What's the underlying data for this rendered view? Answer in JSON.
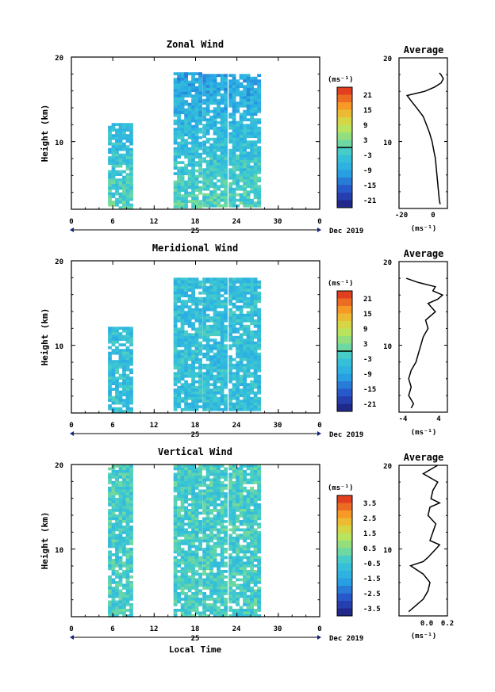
{
  "figure": {
    "x_axis_title": "Local Time",
    "date_label": "25",
    "month_label": "Dec 2019",
    "x_ticks": [
      "0",
      "6",
      "12",
      "18",
      "24",
      "30",
      "0"
    ]
  },
  "chart_data": [
    {
      "type": "heatmap",
      "title": "Zonal Wind",
      "ylabel": "Height (km)",
      "xlim": [
        0,
        36
      ],
      "ylim": [
        2,
        20
      ],
      "y_ticks": [
        "20",
        "10"
      ],
      "colorbar": {
        "unit": "(ms⁻¹)",
        "ticks": [
          "21",
          "15",
          "9",
          "3",
          "-3",
          "-9",
          "-15",
          "-21"
        ],
        "range": [
          -24,
          24
        ]
      },
      "data_blocks": [
        {
          "t": [
            5.3,
            8.7
          ],
          "h": [
            2.3,
            12.2
          ]
        },
        {
          "t": [
            14.8,
            18.6
          ],
          "h": [
            2.3,
            18.2
          ]
        },
        {
          "t": [
            19.0,
            22.2
          ],
          "h": [
            2.3,
            18.0
          ]
        },
        {
          "t": [
            22.8,
            27.0
          ],
          "h": [
            2.3,
            18.0
          ]
        }
      ],
      "average": {
        "title": "Average",
        "unit": "(ms⁻¹)",
        "xlim": [
          -24,
          6
        ],
        "x_ticks": [
          "-20",
          "0"
        ],
        "profile": [
          [
            2.5,
            1.5
          ],
          [
            3,
            1
          ],
          [
            4,
            0.5
          ],
          [
            5,
            0
          ],
          [
            6,
            -0.5
          ],
          [
            7,
            -1
          ],
          [
            8,
            -1.5
          ],
          [
            9,
            -2.5
          ],
          [
            10,
            -3.5
          ],
          [
            11,
            -5
          ],
          [
            12,
            -7
          ],
          [
            13,
            -9
          ],
          [
            14,
            -13
          ],
          [
            15,
            -17
          ],
          [
            15.5,
            -19
          ],
          [
            16,
            -8
          ],
          [
            16.5,
            -2
          ],
          [
            17,
            2
          ],
          [
            17.5,
            3.5
          ],
          [
            18,
            2
          ],
          [
            18.2,
            1
          ]
        ]
      }
    },
    {
      "type": "heatmap",
      "title": "Meridional Wind",
      "ylabel": "Height (km)",
      "xlim": [
        0,
        36
      ],
      "ylim": [
        2,
        20
      ],
      "y_ticks": [
        "20",
        "10"
      ],
      "colorbar": {
        "unit": "(ms⁻¹)",
        "ticks": [
          "21",
          "15",
          "9",
          "3",
          "-3",
          "-9",
          "-15",
          "-21"
        ],
        "range": [
          -24,
          24
        ]
      },
      "data_blocks": [
        {
          "t": [
            5.3,
            8.7
          ],
          "h": [
            2.3,
            12.2
          ]
        },
        {
          "t": [
            14.8,
            18.6
          ],
          "h": [
            2.3,
            18.0
          ]
        },
        {
          "t": [
            19.0,
            22.2
          ],
          "h": [
            2.3,
            18.0
          ]
        },
        {
          "t": [
            22.8,
            27.0
          ],
          "h": [
            2.3,
            18.0
          ]
        }
      ],
      "average": {
        "title": "Average",
        "unit": "(ms⁻¹)",
        "xlim": [
          -5,
          5
        ],
        "x_ticks": [
          "-4",
          "4"
        ],
        "profile": [
          [
            2.5,
            -2.5
          ],
          [
            3,
            -2
          ],
          [
            4,
            -3
          ],
          [
            5,
            -2.5
          ],
          [
            6,
            -3
          ],
          [
            7,
            -2.5
          ],
          [
            8,
            -1.5
          ],
          [
            9,
            -1
          ],
          [
            10,
            -0.5
          ],
          [
            11,
            0
          ],
          [
            12,
            1
          ],
          [
            13,
            0.5
          ],
          [
            14,
            2.5
          ],
          [
            15,
            1
          ],
          [
            15.5,
            3
          ],
          [
            16,
            4
          ],
          [
            16.5,
            2
          ],
          [
            17,
            2.5
          ],
          [
            17.5,
            -1
          ],
          [
            18,
            -3.5
          ]
        ]
      }
    },
    {
      "type": "heatmap",
      "title": "Vertical Wind",
      "ylabel": "Height (km)",
      "xlim": [
        0,
        36
      ],
      "ylim": [
        2,
        20
      ],
      "y_ticks": [
        "20",
        "10"
      ],
      "colorbar": {
        "unit": "(ms⁻¹)",
        "ticks": [
          "3.5",
          "2.5",
          "1.5",
          "0.5",
          "-0.5",
          "-1.5",
          "-2.5",
          "-3.5"
        ],
        "range": [
          -4,
          4
        ]
      },
      "data_blocks": [
        {
          "t": [
            5.3,
            8.7
          ],
          "h": [
            2.0,
            20.0
          ]
        },
        {
          "t": [
            14.8,
            18.6
          ],
          "h": [
            2.0,
            20.0
          ]
        },
        {
          "t": [
            19.0,
            22.2
          ],
          "h": [
            2.0,
            20.0
          ]
        },
        {
          "t": [
            22.8,
            27.0
          ],
          "h": [
            2.0,
            20.0
          ]
        }
      ],
      "average": {
        "title": "Average",
        "unit": "(ms⁻¹)",
        "xlim": [
          -0.3,
          0.2
        ],
        "x_ticks": [
          "0.0",
          "0.2"
        ],
        "profile": [
          [
            2.5,
            -0.2
          ],
          [
            3,
            -0.15
          ],
          [
            4,
            -0.05
          ],
          [
            5,
            0.0
          ],
          [
            6,
            0.02
          ],
          [
            7,
            -0.05
          ],
          [
            8,
            -0.18
          ],
          [
            8.5,
            -0.05
          ],
          [
            9,
            0.0
          ],
          [
            10,
            0.08
          ],
          [
            10.5,
            0.12
          ],
          [
            11,
            0.02
          ],
          [
            12,
            0.05
          ],
          [
            13,
            0.08
          ],
          [
            14,
            0.0
          ],
          [
            15,
            0.02
          ],
          [
            15.5,
            0.12
          ],
          [
            16,
            0.03
          ],
          [
            17,
            0.05
          ],
          [
            18,
            0.1
          ],
          [
            19,
            -0.05
          ],
          [
            20,
            0.1
          ]
        ]
      }
    }
  ]
}
